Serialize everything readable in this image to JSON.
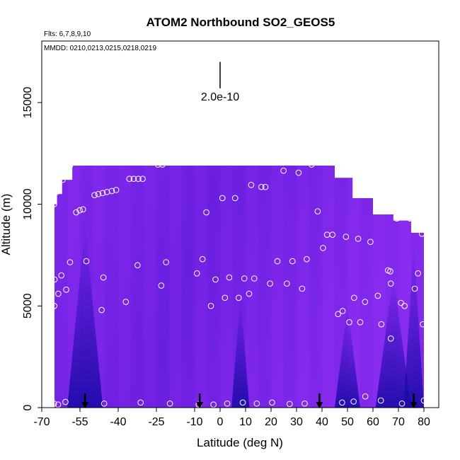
{
  "chart_data": {
    "type": "heatmap",
    "title": "ATOM2 Northbound SO2_GEOS5",
    "subtitle_flights": "Flts: 6,7,8,9,10",
    "subtitle_dates": "MMDD: 0210,0213,0215,0218,0219",
    "xlabel": "Latitude (deg N)",
    "ylabel": "Altitude (m)",
    "xlim": [
      -70,
      80
    ],
    "ylim": [
      0,
      17500
    ],
    "x_ticks": [
      -70,
      -55,
      -40,
      -25,
      -10,
      0,
      10,
      20,
      30,
      40,
      50,
      60,
      70,
      80
    ],
    "y_ticks": [
      0,
      5000,
      10000,
      15000
    ],
    "scale_bar_label": "2.0e-10",
    "scale_bar": {
      "lat": 0,
      "alt_top": 17000,
      "alt_bottom": 15700
    },
    "colors": {
      "field_base": "#6a1fe0",
      "field_bright": "#8a2cf0",
      "field_dark": "#1a0aa8",
      "marker_stroke": "#ffffff",
      "arrow": "#000000"
    },
    "column_ceiling": [
      {
        "lat": -65,
        "alt": 10000
      },
      {
        "lat": -64,
        "alt": 10500
      },
      {
        "lat": -62,
        "alt": 11200
      },
      {
        "lat": -58,
        "alt": 11900
      },
      {
        "lat": -5,
        "alt": 11900
      },
      {
        "lat": 38,
        "alt": 11900
      },
      {
        "lat": 45,
        "alt": 11300
      },
      {
        "lat": 52,
        "alt": 10300
      },
      {
        "lat": 60,
        "alt": 9500
      },
      {
        "lat": 68,
        "alt": 9200
      },
      {
        "lat": 75,
        "alt": 8600
      },
      {
        "lat": 80,
        "alt": 8600
      }
    ],
    "dark_plumes": [
      {
        "lat": -53,
        "top": 9000,
        "width": 14
      },
      {
        "lat": 8,
        "top": 5500,
        "width": 7
      },
      {
        "lat": 50,
        "top": 5000,
        "width": 10
      },
      {
        "lat": 68,
        "top": 6500,
        "width": 14
      },
      {
        "lat": 76,
        "top": 8000,
        "width": 8
      }
    ],
    "arrows_lat": [
      -53,
      -8,
      39,
      76
    ],
    "points": [
      {
        "lat": -65.2,
        "alt": 10000
      },
      {
        "lat": -64.3,
        "alt": 10600
      },
      {
        "lat": -61.8,
        "alt": 11200
      },
      {
        "lat": -58.9,
        "alt": 11900
      },
      {
        "lat": -56.5,
        "alt": 9600
      },
      {
        "lat": -55.1,
        "alt": 9700
      },
      {
        "lat": -53.8,
        "alt": 9750
      },
      {
        "lat": -49.3,
        "alt": 10450
      },
      {
        "lat": -47.8,
        "alt": 10500
      },
      {
        "lat": -46.1,
        "alt": 10550
      },
      {
        "lat": -44.4,
        "alt": 10600
      },
      {
        "lat": -42.5,
        "alt": 10650
      },
      {
        "lat": -40.8,
        "alt": 10700
      },
      {
        "lat": -35.6,
        "alt": 11250
      },
      {
        "lat": -33.9,
        "alt": 11250
      },
      {
        "lat": -32.1,
        "alt": 11250
      },
      {
        "lat": -30.4,
        "alt": 11250
      },
      {
        "lat": -24.4,
        "alt": 11950
      },
      {
        "lat": -22.6,
        "alt": 11950
      },
      {
        "lat": -65.0,
        "alt": 6300
      },
      {
        "lat": -63.5,
        "alt": 5600
      },
      {
        "lat": -62.3,
        "alt": 6500
      },
      {
        "lat": -60.4,
        "alt": 5800
      },
      {
        "lat": -58.9,
        "alt": 7150
      },
      {
        "lat": -52.5,
        "alt": 7200
      },
      {
        "lat": -45.8,
        "alt": 6400
      },
      {
        "lat": -46.5,
        "alt": 4800
      },
      {
        "lat": -65.1,
        "alt": 5000
      },
      {
        "lat": -37.0,
        "alt": 5200
      },
      {
        "lat": -32.4,
        "alt": 7000
      },
      {
        "lat": -21.2,
        "alt": 7150
      },
      {
        "lat": -23.1,
        "alt": 6000
      },
      {
        "lat": -9.1,
        "alt": 6600
      },
      {
        "lat": -6.9,
        "alt": 7300
      },
      {
        "lat": -5.4,
        "alt": 9600
      },
      {
        "lat": -3.6,
        "alt": 5000
      },
      {
        "lat": -1.8,
        "alt": 6300
      },
      {
        "lat": 0.9,
        "alt": 10300
      },
      {
        "lat": 1.9,
        "alt": 5400
      },
      {
        "lat": 3.6,
        "alt": 6400
      },
      {
        "lat": 5.9,
        "alt": 10300
      },
      {
        "lat": 7.3,
        "alt": 5400
      },
      {
        "lat": 9.5,
        "alt": 6350
      },
      {
        "lat": 11.4,
        "alt": 5600
      },
      {
        "lat": 12.2,
        "alt": 10950
      },
      {
        "lat": 13.4,
        "alt": 6350
      },
      {
        "lat": 16.2,
        "alt": 10850
      },
      {
        "lat": 17.8,
        "alt": 10850
      },
      {
        "lat": 19.6,
        "alt": 6100
      },
      {
        "lat": 22.5,
        "alt": 7200
      },
      {
        "lat": 24.9,
        "alt": 11650
      },
      {
        "lat": 26.2,
        "alt": 6100
      },
      {
        "lat": 28.4,
        "alt": 7200
      },
      {
        "lat": 30.8,
        "alt": 11550
      },
      {
        "lat": 32.2,
        "alt": 5850
      },
      {
        "lat": 34.0,
        "alt": 7300
      },
      {
        "lat": 35.9,
        "alt": 11950
      },
      {
        "lat": 38.3,
        "alt": 9650
      },
      {
        "lat": 40.4,
        "alt": 7850
      },
      {
        "lat": 42.0,
        "alt": 8500
      },
      {
        "lat": 44.1,
        "alt": 8500
      },
      {
        "lat": 46.3,
        "alt": 4600
      },
      {
        "lat": 48.1,
        "alt": 4750
      },
      {
        "lat": 49.4,
        "alt": 8400
      },
      {
        "lat": 50.7,
        "alt": 4200
      },
      {
        "lat": 52.6,
        "alt": 5400
      },
      {
        "lat": 54.2,
        "alt": 8300
      },
      {
        "lat": 55.0,
        "alt": 4200
      },
      {
        "lat": 56.9,
        "alt": 5200
      },
      {
        "lat": 59.0,
        "alt": 8150
      },
      {
        "lat": 61.9,
        "alt": 5500
      },
      {
        "lat": 63.3,
        "alt": 4100
      },
      {
        "lat": 65.9,
        "alt": 6750
      },
      {
        "lat": 66.8,
        "alt": 6700
      },
      {
        "lat": 67.0,
        "alt": 6100
      },
      {
        "lat": 67.0,
        "alt": 3400
      },
      {
        "lat": 69.4,
        "alt": 9300
      },
      {
        "lat": 71.0,
        "alt": 5150
      },
      {
        "lat": 72.4,
        "alt": 5000
      },
      {
        "lat": 74.6,
        "alt": 9300
      },
      {
        "lat": 76.4,
        "alt": 5850
      },
      {
        "lat": 77.7,
        "alt": 6600
      },
      {
        "lat": 79.2,
        "alt": 8550
      },
      {
        "lat": 79.6,
        "alt": 4100
      },
      {
        "lat": -65.2,
        "alt": 200
      },
      {
        "lat": -63.6,
        "alt": 150
      },
      {
        "lat": -60.7,
        "alt": 280
      },
      {
        "lat": -45.5,
        "alt": 200
      },
      {
        "lat": -31.2,
        "alt": 250
      },
      {
        "lat": -19.7,
        "alt": 200
      },
      {
        "lat": -8.4,
        "alt": 150
      },
      {
        "lat": -2.6,
        "alt": 150
      },
      {
        "lat": 2.8,
        "alt": 200
      },
      {
        "lat": 8.9,
        "alt": 250
      },
      {
        "lat": 14.4,
        "alt": 200
      },
      {
        "lat": 20.4,
        "alt": 250
      },
      {
        "lat": 27.3,
        "alt": 180
      },
      {
        "lat": 33.2,
        "alt": 200
      },
      {
        "lat": 47.9,
        "alt": 250
      },
      {
        "lat": 52.4,
        "alt": 300
      },
      {
        "lat": 57.0,
        "alt": 550
      },
      {
        "lat": 63.1,
        "alt": 350
      },
      {
        "lat": 71.4,
        "alt": 200
      },
      {
        "lat": 80.0,
        "alt": 350
      }
    ]
  }
}
